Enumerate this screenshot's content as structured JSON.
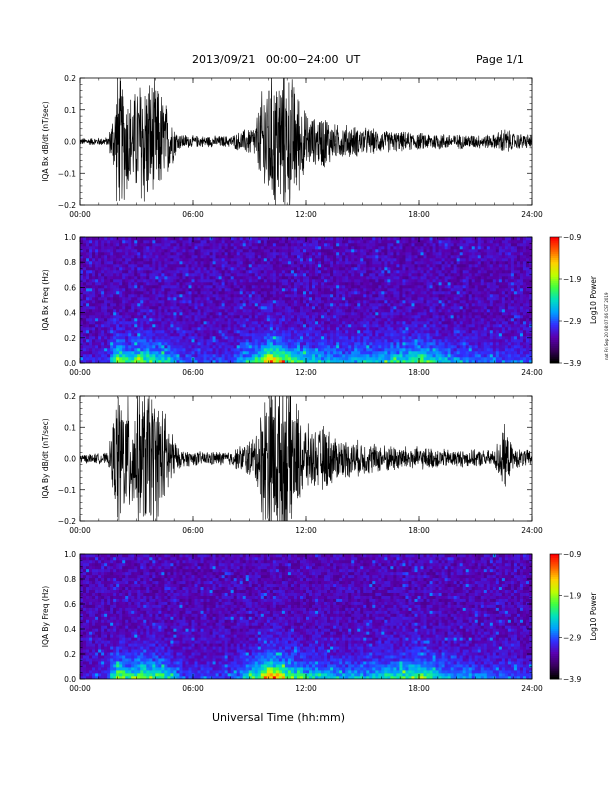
{
  "header": {
    "title": "2013/09/21   00:00−24:00  UT",
    "page": "Page 1/1"
  },
  "side_note": "nat Fri Sep 20 08:07:06 CST 2019",
  "xlabel": "Universal Time (hh:mm)",
  "colors": {
    "colormap": [
      "#000000",
      "#3a0060",
      "#5a00b0",
      "#3030ff",
      "#00a0ff",
      "#00e0c0",
      "#40ff40",
      "#c0ff00",
      "#ffd000",
      "#ff6000",
      "#ff0000"
    ],
    "spectrogram_background": "#2a1a5e",
    "trace": "#000000"
  },
  "chart_data": [
    {
      "type": "line",
      "ylabel": "IQA Bx dB/dt (nT/sec)",
      "xlim": [
        0,
        24
      ],
      "ylim": [
        -0.2,
        0.2
      ],
      "xticks": [
        "00:00",
        "06:00",
        "12:00",
        "18:00",
        "24:00"
      ],
      "yticks": [
        "0.2",
        "0.1",
        "0.0",
        "−0.1",
        "−0.2"
      ],
      "envelope_hours": [
        0,
        1.5,
        1.8,
        2.0,
        2.4,
        2.8,
        3.3,
        3.8,
        4.3,
        4.8,
        5.2,
        6,
        8,
        9.3,
        9.8,
        10.2,
        10.6,
        11.0,
        11.5,
        12,
        12.5,
        13,
        13.5,
        14,
        15,
        16,
        17,
        18,
        19,
        20,
        21,
        22,
        22.5,
        23,
        24
      ],
      "envelope_amplitude": [
        0.012,
        0.015,
        0.12,
        0.25,
        0.2,
        0.16,
        0.25,
        0.22,
        0.18,
        0.1,
        0.03,
        0.02,
        0.02,
        0.06,
        0.22,
        0.25,
        0.25,
        0.25,
        0.2,
        0.1,
        0.08,
        0.1,
        0.06,
        0.06,
        0.05,
        0.04,
        0.035,
        0.03,
        0.03,
        0.025,
        0.025,
        0.025,
        0.05,
        0.03,
        0.025
      ]
    },
    {
      "type": "heatmap",
      "ylabel": "IQA Bx Freq (Hz)",
      "xlim": [
        0,
        24
      ],
      "ylim": [
        0,
        1.0
      ],
      "xticks": [
        "00:00",
        "06:00",
        "12:00",
        "18:00",
        "24:00"
      ],
      "yticks": [
        "1.0",
        "0.8",
        "0.6",
        "0.4",
        "0.2",
        "0.0"
      ],
      "colorbar": {
        "label": "Log10 Power",
        "ticks": [
          "−0.9",
          "−1.9",
          "−2.9",
          "−3.9"
        ],
        "range": [
          -3.9,
          -0.9
        ]
      },
      "activity_hours": [
        0,
        1.5,
        2.0,
        2.5,
        3.3,
        4.3,
        5.5,
        8,
        9.5,
        10.2,
        11,
        12,
        14,
        16,
        17,
        18,
        19,
        20,
        24
      ],
      "activity_level": [
        0.05,
        0.1,
        0.7,
        0.4,
        0.55,
        0.45,
        0.15,
        0.12,
        0.5,
        0.9,
        0.55,
        0.35,
        0.3,
        0.35,
        0.45,
        0.55,
        0.35,
        0.25,
        0.12
      ]
    },
    {
      "type": "line",
      "ylabel": "IQA By dB/dt (nT/sec)",
      "xlim": [
        0,
        24
      ],
      "ylim": [
        -0.2,
        0.2
      ],
      "xticks": [
        "00:00",
        "06:00",
        "12:00",
        "18:00",
        "24:00"
      ],
      "yticks": [
        "0.2",
        "0.1",
        "0.0",
        "−0.1",
        "−0.2"
      ],
      "envelope_hours": [
        0,
        1.5,
        1.8,
        2.0,
        2.4,
        2.8,
        3.3,
        3.8,
        4.3,
        4.8,
        5.2,
        6,
        8,
        9.3,
        9.8,
        10.2,
        10.6,
        11.0,
        11.5,
        12,
        12.5,
        13,
        13.5,
        14,
        15,
        16,
        17,
        18,
        19,
        20,
        21,
        22,
        22.5,
        23,
        24
      ],
      "envelope_amplitude": [
        0.015,
        0.02,
        0.15,
        0.25,
        0.22,
        0.2,
        0.25,
        0.25,
        0.2,
        0.12,
        0.035,
        0.025,
        0.025,
        0.08,
        0.25,
        0.3,
        0.3,
        0.28,
        0.2,
        0.12,
        0.1,
        0.12,
        0.08,
        0.07,
        0.06,
        0.05,
        0.045,
        0.04,
        0.035,
        0.03,
        0.03,
        0.03,
        0.12,
        0.035,
        0.03
      ]
    },
    {
      "type": "heatmap",
      "ylabel": "IQA By Freq (Hz)",
      "xlim": [
        0,
        24
      ],
      "ylim": [
        0,
        1.0
      ],
      "xticks": [
        "00:00",
        "06:00",
        "12:00",
        "18:00",
        "24:00"
      ],
      "yticks": [
        "1.0",
        "0.8",
        "0.6",
        "0.4",
        "0.2",
        "0.0"
      ],
      "colorbar": {
        "label": "Log10 Power",
        "ticks": [
          "−0.9",
          "−1.9",
          "−2.9",
          "−3.9"
        ],
        "range": [
          -3.9,
          -0.9
        ]
      },
      "activity_hours": [
        0,
        1.5,
        2.0,
        2.5,
        3.3,
        4.3,
        5.5,
        8,
        9.5,
        10.2,
        11,
        12,
        14,
        16,
        17,
        18,
        19,
        20,
        24
      ],
      "activity_level": [
        0.05,
        0.1,
        0.75,
        0.45,
        0.6,
        0.5,
        0.15,
        0.12,
        0.55,
        1.0,
        0.6,
        0.4,
        0.3,
        0.35,
        0.5,
        0.6,
        0.35,
        0.25,
        0.12
      ]
    }
  ]
}
